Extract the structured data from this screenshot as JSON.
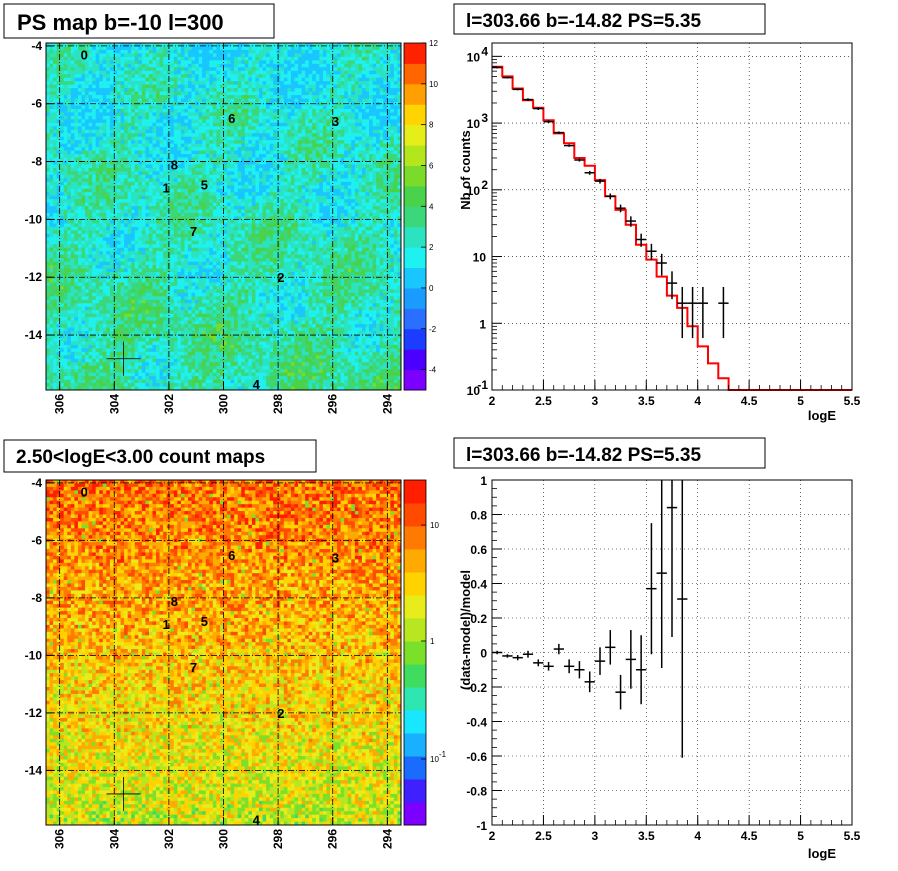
{
  "panels": {
    "ps_map": {
      "title": "PS map b=-10 l=300",
      "colorbar_labels": [
        "12",
        "10",
        "8",
        "6",
        "4",
        "2",
        "0",
        "-2",
        "-4"
      ],
      "colorbar_range": [
        -5,
        12
      ]
    },
    "count_map": {
      "title": "2.50<logE<3.00 count maps",
      "colorbar_labels": [
        "10",
        "1",
        "10",
        "-1"
      ]
    },
    "spectrum_title": "l=303.66 b=-14.82 PS=5.35",
    "residual_title": "l=303.66 b=-14.82 PS=5.35"
  },
  "maps": {
    "x_ticks": [
      "306",
      "304",
      "302",
      "300",
      "298",
      "296",
      "294"
    ],
    "y_ticks": [
      "-4",
      "-6",
      "-8",
      "-10",
      "-12",
      "-14"
    ],
    "x_range": [
      306.5,
      293.5
    ],
    "y_range": [
      -15.9,
      -3.9
    ],
    "sources": [
      {
        "label": "0",
        "l": 305.1,
        "b": -4.3
      },
      {
        "label": "1",
        "l": 302.1,
        "b": -8.9
      },
      {
        "label": "2",
        "l": 297.9,
        "b": -12.0
      },
      {
        "label": "3",
        "l": 295.9,
        "b": -6.6
      },
      {
        "label": "4",
        "l": 298.8,
        "b": -15.7
      },
      {
        "label": "5",
        "l": 300.7,
        "b": -8.8
      },
      {
        "label": "6",
        "l": 299.7,
        "b": -6.5
      },
      {
        "label": "7",
        "l": 301.1,
        "b": -10.4
      },
      {
        "label": "8",
        "l": 301.8,
        "b": -8.1
      }
    ],
    "marker": {
      "l": 303.66,
      "b": -14.82
    }
  },
  "chart_data": [
    {
      "type": "line",
      "title": "l=303.66 b=-14.82 PS=5.35",
      "xlabel": "logE",
      "ylabel": "Nb of counts",
      "xlim": [
        2,
        5.5
      ],
      "ylim_log10": [
        -1,
        4.2
      ],
      "log_y": true,
      "grid": true,
      "x_ticks": [
        "2",
        "2.5",
        "3",
        "3.5",
        "4",
        "4.5",
        "5",
        "5.5"
      ],
      "y_ticks": [
        {
          "base": "10",
          "exp": "-1"
        },
        {
          "base": "1",
          "exp": ""
        },
        {
          "base": "10",
          "exp": ""
        },
        {
          "base": "10",
          "exp": "2"
        },
        {
          "base": "10",
          "exp": "3"
        },
        {
          "base": "10",
          "exp": "4"
        }
      ],
      "model_step": {
        "edges": [
          2.0,
          2.1,
          2.2,
          2.3,
          2.4,
          2.5,
          2.6,
          2.7,
          2.8,
          2.9,
          3.0,
          3.1,
          3.2,
          3.3,
          3.4,
          3.5,
          3.6,
          3.7,
          3.8,
          3.9,
          4.0,
          4.1,
          4.2,
          4.3,
          5.5
        ],
        "values": [
          7000,
          5000,
          3300,
          2200,
          1700,
          1100,
          700,
          500,
          300,
          230,
          140,
          80,
          50,
          30,
          15,
          9,
          5,
          2.6,
          1.7,
          0.9,
          0.45,
          0.25,
          0.15,
          0.1
        ]
      },
      "data_points": [
        {
          "x": 2.05,
          "y": 6800,
          "ylo": 6600,
          "yhi": 7000
        },
        {
          "x": 2.15,
          "y": 4800,
          "ylo": 4650,
          "yhi": 4950
        },
        {
          "x": 2.25,
          "y": 3200,
          "ylo": 3100,
          "yhi": 3300
        },
        {
          "x": 2.35,
          "y": 2250,
          "ylo": 2150,
          "yhi": 2350
        },
        {
          "x": 2.45,
          "y": 1650,
          "ylo": 1570,
          "yhi": 1730
        },
        {
          "x": 2.55,
          "y": 1050,
          "ylo": 1000,
          "yhi": 1100
        },
        {
          "x": 2.65,
          "y": 720,
          "ylo": 690,
          "yhi": 750
        },
        {
          "x": 2.75,
          "y": 460,
          "ylo": 440,
          "yhi": 480
        },
        {
          "x": 2.85,
          "y": 280,
          "ylo": 265,
          "yhi": 295
        },
        {
          "x": 2.95,
          "y": 180,
          "ylo": 168,
          "yhi": 192
        },
        {
          "x": 3.05,
          "y": 135,
          "ylo": 124,
          "yhi": 146
        },
        {
          "x": 3.15,
          "y": 80,
          "ylo": 72,
          "yhi": 88
        },
        {
          "x": 3.25,
          "y": 53,
          "ylo": 46,
          "yhi": 60
        },
        {
          "x": 3.35,
          "y": 34,
          "ylo": 28,
          "yhi": 40
        },
        {
          "x": 3.45,
          "y": 18,
          "ylo": 14,
          "yhi": 22
        },
        {
          "x": 3.55,
          "y": 12,
          "ylo": 9,
          "yhi": 15.5
        },
        {
          "x": 3.65,
          "y": 8,
          "ylo": 5.2,
          "yhi": 11
        },
        {
          "x": 3.75,
          "y": 4,
          "ylo": 2.3,
          "yhi": 6
        },
        {
          "x": 3.85,
          "y": 2,
          "ylo": 0.6,
          "yhi": 3.5
        },
        {
          "x": 3.95,
          "y": 2,
          "ylo": 0.6,
          "yhi": 3.5
        },
        {
          "x": 4.05,
          "y": 2,
          "ylo": 0.6,
          "yhi": 3.5
        },
        {
          "x": 4.25,
          "y": 2,
          "ylo": 0.6,
          "yhi": 3.5
        }
      ]
    },
    {
      "type": "scatter",
      "title": "l=303.66 b=-14.82 PS=5.35",
      "xlabel": "logE",
      "ylabel": "(data-model)/model",
      "xlim": [
        2,
        5.5
      ],
      "ylim": [
        -1,
        1
      ],
      "grid": true,
      "x_ticks": [
        "2",
        "2.5",
        "3",
        "3.5",
        "4",
        "4.5",
        "5",
        "5.5"
      ],
      "y_ticks": [
        "-1",
        "-0.8",
        "-0.6",
        "-0.4",
        "-0.2",
        "0",
        "0.2",
        "0.4",
        "0.6",
        "0.8",
        "1"
      ],
      "data_points": [
        {
          "x": 2.05,
          "y": 0.0,
          "err": 0.01
        },
        {
          "x": 2.15,
          "y": -0.02,
          "err": 0.01
        },
        {
          "x": 2.25,
          "y": -0.03,
          "err": 0.015
        },
        {
          "x": 2.35,
          "y": -0.01,
          "err": 0.02
        },
        {
          "x": 2.45,
          "y": -0.06,
          "err": 0.02
        },
        {
          "x": 2.55,
          "y": -0.08,
          "err": 0.025
        },
        {
          "x": 2.65,
          "y": 0.02,
          "err": 0.03
        },
        {
          "x": 2.75,
          "y": -0.08,
          "err": 0.04
        },
        {
          "x": 2.85,
          "y": -0.1,
          "err": 0.05
        },
        {
          "x": 2.95,
          "y": -0.17,
          "err": 0.06
        },
        {
          "x": 3.05,
          "y": -0.05,
          "err": 0.08
        },
        {
          "x": 3.15,
          "y": 0.03,
          "err": 0.1
        },
        {
          "x": 3.25,
          "y": -0.23,
          "err": 0.1
        },
        {
          "x": 3.35,
          "y": -0.04,
          "err": 0.17
        },
        {
          "x": 3.45,
          "y": -0.1,
          "err": 0.2
        },
        {
          "x": 3.55,
          "y": 0.37,
          "err": 0.38
        },
        {
          "x": 3.65,
          "y": 0.46,
          "err": 0.55
        },
        {
          "x": 3.75,
          "y": 0.84,
          "err": 0.75
        },
        {
          "x": 3.85,
          "y": 0.31,
          "err": 0.92
        }
      ]
    }
  ],
  "colors": {
    "model_line": "#ff0000",
    "points": "#000000",
    "grid": "#000000"
  }
}
